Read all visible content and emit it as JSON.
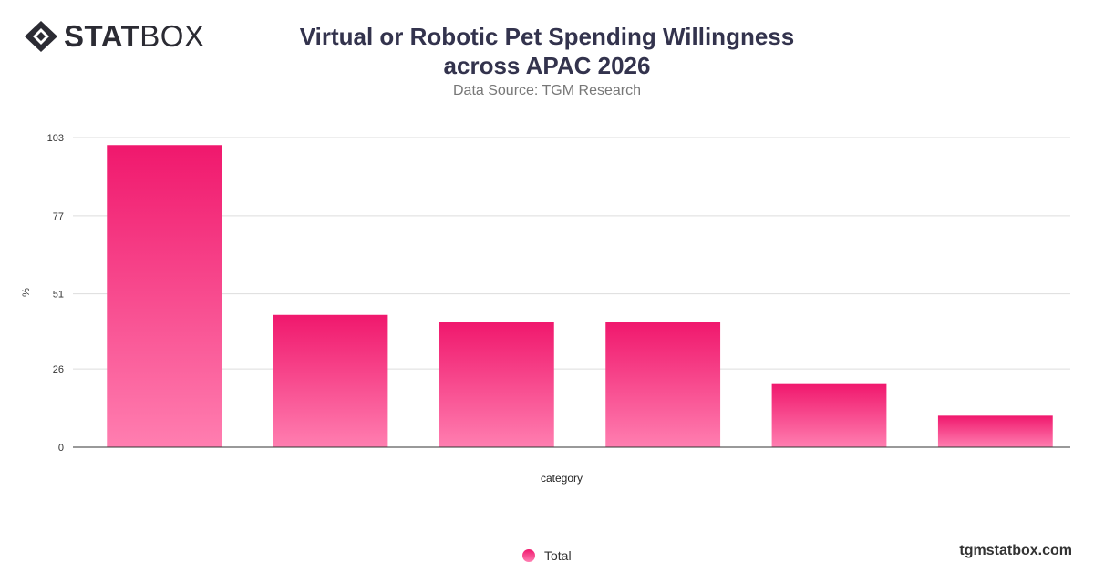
{
  "brand": {
    "logo_bold": "STAT",
    "logo_light": "BOX",
    "site": "tgmstatbox.com"
  },
  "colors": {
    "bar_top": "#f0186d",
    "bar_bottom": "#ff7eb0",
    "grid": "#dddddd",
    "text": "#33334d"
  },
  "chart_data": {
    "type": "bar",
    "title": "Virtual or Robotic Pet Spending Willingness across APAC 2026",
    "subtitle": "Data Source: TGM Research",
    "xlabel": "category",
    "ylabel": "%",
    "ylim": [
      0,
      103
    ],
    "yticks": [
      0,
      26,
      51,
      77,
      103
    ],
    "categories": [
      "",
      "",
      "",
      "",
      "",
      ""
    ],
    "series": [
      {
        "name": "Total",
        "values": [
          100.5,
          44,
          41.5,
          41.5,
          21,
          10.5
        ]
      }
    ],
    "grid": true,
    "legend": "bottom-center"
  }
}
